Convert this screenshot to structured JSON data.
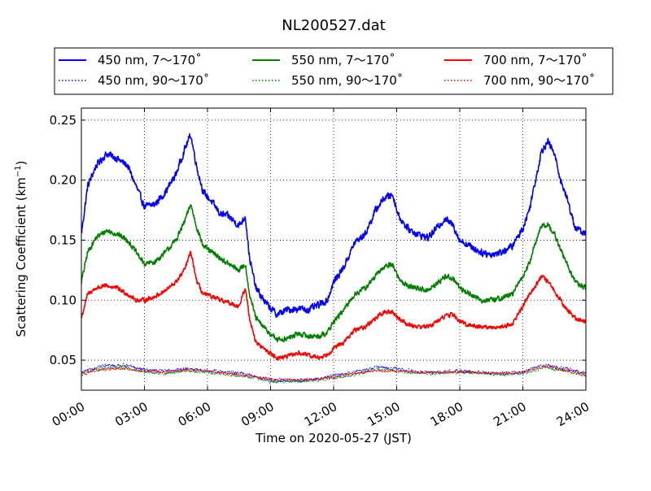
{
  "chart_data": {
    "type": "line",
    "title": "NL200527.dat",
    "xlabel": "Time on 2020-05-27 (JST)",
    "ylabel_main": "Scattering Coefficient (km",
    "ylabel_sup": "−1",
    "ylabel_close": ")",
    "xlim": [
      0,
      24
    ],
    "ylim": [
      0.025,
      0.26
    ],
    "x_ticks": [
      0,
      3,
      6,
      9,
      12,
      15,
      18,
      21,
      24
    ],
    "x_tick_labels": [
      "00:00",
      "03:00",
      "06:00",
      "09:00",
      "12:00",
      "15:00",
      "18:00",
      "21:00",
      "24:00"
    ],
    "y_ticks": [
      0.05,
      0.1,
      0.15,
      0.2,
      0.25
    ],
    "y_tick_labels": [
      "0.05",
      "0.10",
      "0.15",
      "0.20",
      "0.25"
    ],
    "grid": true,
    "legend_placement": "above-plot",
    "legend_columns": 3,
    "series": [
      {
        "name": "450 nm, 7～170˚",
        "color": "#0000ff",
        "style": "solid",
        "noise": 0.004,
        "x": [
          0,
          0.3,
          0.7,
          1.2,
          1.7,
          2.2,
          2.6,
          3.0,
          3.5,
          4.0,
          4.5,
          4.9,
          5.2,
          5.5,
          5.8,
          6.2,
          6.6,
          7.0,
          7.5,
          7.8,
          8.0,
          8.3,
          8.8,
          9.3,
          9.8,
          10.3,
          10.8,
          11.3,
          11.7,
          12.0,
          12.5,
          13.0,
          13.5,
          14.0,
          14.4,
          14.8,
          15.1,
          15.5,
          16.0,
          16.5,
          17.0,
          17.3,
          17.7,
          18.0,
          18.5,
          19.0,
          19.5,
          20.0,
          20.5,
          21.0,
          21.3,
          21.6,
          21.9,
          22.2,
          22.5,
          22.8,
          23.1,
          23.5,
          24.0
        ],
        "y": [
          0.155,
          0.195,
          0.212,
          0.222,
          0.218,
          0.212,
          0.195,
          0.178,
          0.18,
          0.19,
          0.205,
          0.225,
          0.238,
          0.21,
          0.19,
          0.182,
          0.172,
          0.17,
          0.162,
          0.17,
          0.135,
          0.11,
          0.097,
          0.088,
          0.092,
          0.093,
          0.092,
          0.096,
          0.1,
          0.115,
          0.128,
          0.148,
          0.155,
          0.175,
          0.185,
          0.188,
          0.17,
          0.16,
          0.155,
          0.152,
          0.162,
          0.168,
          0.162,
          0.15,
          0.145,
          0.14,
          0.138,
          0.14,
          0.145,
          0.16,
          0.175,
          0.2,
          0.225,
          0.232,
          0.222,
          0.2,
          0.185,
          0.16,
          0.155
        ]
      },
      {
        "name": "550 nm, 7～170˚",
        "color": "#008000",
        "style": "solid",
        "noise": 0.003,
        "x": [
          0,
          0.3,
          0.7,
          1.2,
          1.7,
          2.2,
          2.6,
          3.0,
          3.5,
          4.0,
          4.5,
          4.9,
          5.2,
          5.5,
          5.8,
          6.2,
          6.6,
          7.0,
          7.5,
          7.8,
          8.0,
          8.3,
          8.8,
          9.3,
          9.8,
          10.3,
          10.8,
          11.3,
          11.7,
          12.0,
          12.5,
          13.0,
          13.5,
          14.0,
          14.4,
          14.8,
          15.1,
          15.5,
          16.0,
          16.5,
          17.0,
          17.3,
          17.7,
          18.0,
          18.5,
          19.0,
          19.5,
          20.0,
          20.5,
          21.0,
          21.3,
          21.6,
          21.9,
          22.2,
          22.5,
          22.8,
          23.1,
          23.5,
          24.0
        ],
        "y": [
          0.115,
          0.14,
          0.152,
          0.158,
          0.155,
          0.15,
          0.14,
          0.13,
          0.132,
          0.14,
          0.15,
          0.165,
          0.18,
          0.16,
          0.145,
          0.14,
          0.135,
          0.13,
          0.125,
          0.13,
          0.105,
          0.085,
          0.075,
          0.067,
          0.068,
          0.072,
          0.07,
          0.07,
          0.073,
          0.082,
          0.092,
          0.105,
          0.11,
          0.12,
          0.128,
          0.13,
          0.118,
          0.112,
          0.11,
          0.108,
          0.115,
          0.12,
          0.118,
          0.11,
          0.105,
          0.1,
          0.1,
          0.102,
          0.105,
          0.12,
          0.13,
          0.148,
          0.162,
          0.163,
          0.155,
          0.142,
          0.13,
          0.115,
          0.11
        ]
      },
      {
        "name": "700 nm, 7～170˚",
        "color": "#ff0000",
        "style": "solid",
        "noise": 0.0025,
        "x": [
          0,
          0.3,
          0.7,
          1.2,
          1.7,
          2.2,
          2.6,
          3.0,
          3.5,
          4.0,
          4.5,
          4.9,
          5.2,
          5.5,
          5.8,
          6.2,
          6.6,
          7.0,
          7.5,
          7.8,
          8.0,
          8.3,
          8.8,
          9.3,
          9.8,
          10.3,
          10.8,
          11.3,
          11.7,
          12.0,
          12.5,
          13.0,
          13.5,
          14.0,
          14.4,
          14.8,
          15.1,
          15.5,
          16.0,
          16.5,
          17.0,
          17.3,
          17.7,
          18.0,
          18.5,
          19.0,
          19.5,
          20.0,
          20.5,
          21.0,
          21.3,
          21.6,
          21.9,
          22.2,
          22.5,
          22.8,
          23.1,
          23.5,
          24.0
        ],
        "y": [
          0.085,
          0.105,
          0.11,
          0.112,
          0.11,
          0.105,
          0.1,
          0.1,
          0.103,
          0.108,
          0.115,
          0.125,
          0.14,
          0.115,
          0.105,
          0.103,
          0.1,
          0.098,
          0.095,
          0.11,
          0.085,
          0.065,
          0.058,
          0.052,
          0.053,
          0.056,
          0.054,
          0.052,
          0.055,
          0.06,
          0.065,
          0.075,
          0.078,
          0.085,
          0.09,
          0.09,
          0.085,
          0.08,
          0.078,
          0.078,
          0.083,
          0.087,
          0.088,
          0.082,
          0.079,
          0.078,
          0.077,
          0.078,
          0.08,
          0.095,
          0.105,
          0.112,
          0.12,
          0.115,
          0.108,
          0.1,
          0.092,
          0.085,
          0.082
        ]
      },
      {
        "name": "450 nm, 90～170˚",
        "color": "#0000ff",
        "style": "dotted",
        "noise": 0.0018,
        "x": [
          0,
          1,
          2,
          3,
          4,
          5,
          6,
          7,
          8,
          9,
          10,
          11,
          12,
          13,
          14,
          15,
          16,
          17,
          18,
          19,
          20,
          21,
          22,
          23,
          24
        ],
        "y": [
          0.04,
          0.045,
          0.046,
          0.042,
          0.041,
          0.043,
          0.041,
          0.04,
          0.038,
          0.033,
          0.033,
          0.034,
          0.037,
          0.04,
          0.044,
          0.043,
          0.04,
          0.04,
          0.041,
          0.04,
          0.039,
          0.04,
          0.046,
          0.043,
          0.039
        ]
      },
      {
        "name": "550 nm, 90～170˚",
        "color": "#008000",
        "style": "dotted",
        "noise": 0.0016,
        "x": [
          0,
          1,
          2,
          3,
          4,
          5,
          6,
          7,
          8,
          9,
          10,
          11,
          12,
          13,
          14,
          15,
          16,
          17,
          18,
          19,
          20,
          21,
          22,
          23,
          24
        ],
        "y": [
          0.038,
          0.043,
          0.044,
          0.04,
          0.039,
          0.041,
          0.04,
          0.038,
          0.036,
          0.032,
          0.032,
          0.033,
          0.035,
          0.038,
          0.042,
          0.041,
          0.039,
          0.039,
          0.04,
          0.039,
          0.038,
          0.039,
          0.044,
          0.041,
          0.037
        ]
      },
      {
        "name": "700 nm, 90～170˚",
        "color": "#ff0000",
        "style": "dotted",
        "noise": 0.0015,
        "x": [
          0,
          1,
          2,
          3,
          4,
          5,
          6,
          7,
          8,
          9,
          10,
          11,
          12,
          13,
          14,
          15,
          16,
          17,
          18,
          19,
          20,
          21,
          22,
          23,
          24
        ],
        "y": [
          0.039,
          0.042,
          0.043,
          0.041,
          0.04,
          0.042,
          0.041,
          0.039,
          0.037,
          0.034,
          0.034,
          0.034,
          0.036,
          0.039,
          0.041,
          0.041,
          0.04,
          0.04,
          0.04,
          0.04,
          0.039,
          0.04,
          0.045,
          0.042,
          0.038
        ]
      }
    ]
  }
}
